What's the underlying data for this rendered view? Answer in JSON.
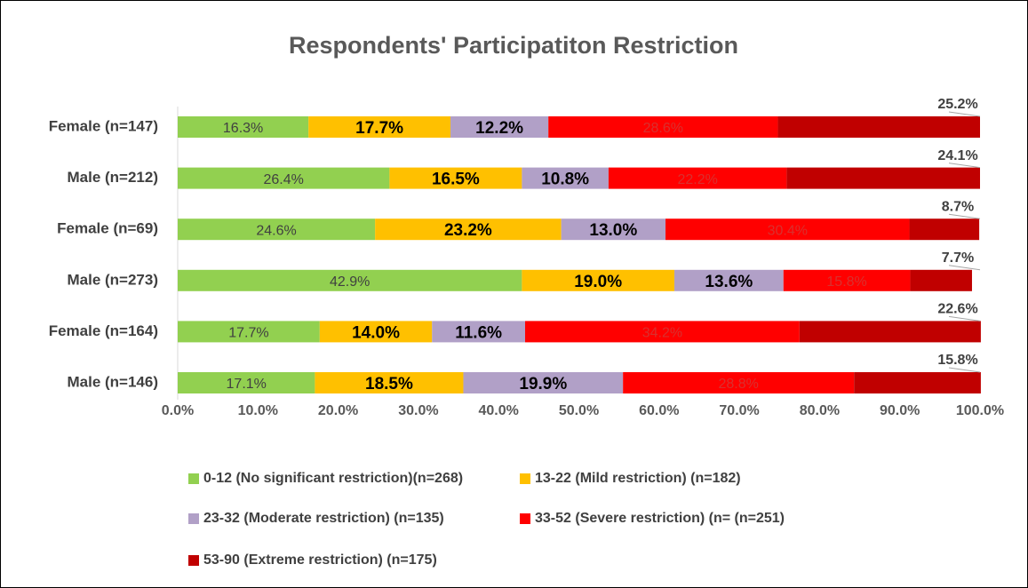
{
  "chart_data": {
    "type": "stacked_bar_horizontal_100",
    "title": "Respondents' Participatiton Restriction",
    "categories": [
      "Female (n=147)",
      "Male (n=212)",
      "Female (n=69)",
      "Male (n=273)",
      "Female (n=164)",
      "Male (n=146)"
    ],
    "series": [
      {
        "name": "0-12 (No significant restriction)(n=268)",
        "color": "#92d050",
        "values": [
          16.3,
          26.4,
          24.6,
          42.9,
          17.7,
          17.1
        ],
        "value_labels": [
          "16.3%",
          "26.4%",
          "24.6%",
          "42.9%",
          "17.7%",
          "17.1%"
        ]
      },
      {
        "name": "13-22 (Mild restriction) (n=182)",
        "color": "#ffc000",
        "values": [
          17.7,
          16.5,
          23.2,
          19.0,
          14.0,
          18.5
        ],
        "value_labels": [
          "17.7%",
          "16.5%",
          "23.2%",
          "19.0%",
          "14.0%",
          "18.5%"
        ]
      },
      {
        "name": "23-32 (Moderate restriction) (n=135)",
        "color": "#b1a0c7",
        "values": [
          12.2,
          10.8,
          13.0,
          13.6,
          11.6,
          19.9
        ],
        "value_labels": [
          "12.2%",
          "10.8%",
          "13.0%",
          "13.6%",
          "11.6%",
          "19.9%"
        ]
      },
      {
        "name": "33-52 (Severe restriction) (n= (n=251)",
        "color": "#ff0000",
        "values": [
          28.6,
          22.2,
          30.4,
          15.8,
          34.2,
          28.8
        ],
        "value_labels": [
          "28.6%",
          "22.2%",
          "30.4%",
          "15.8%",
          "34.2%",
          "28.8%"
        ]
      },
      {
        "name": "53-90 (Extreme restriction) (n=175)",
        "color": "#c00000",
        "values": [
          25.2,
          24.1,
          8.7,
          7.7,
          22.6,
          15.8
        ],
        "value_labels": [
          "25.2%",
          "24.1%",
          "8.7%",
          "7.7%",
          "22.6%",
          "15.8%"
        ]
      }
    ],
    "xlim": [
      0,
      100
    ],
    "xticks": [
      {
        "value": 0,
        "label": "0.0%"
      },
      {
        "value": 10,
        "label": "10.0%"
      },
      {
        "value": 20,
        "label": "20.0%"
      },
      {
        "value": 30,
        "label": "30.0%"
      },
      {
        "value": 40,
        "label": "40.0%"
      },
      {
        "value": 50,
        "label": "50.0%"
      },
      {
        "value": 60,
        "label": "60.0%"
      },
      {
        "value": 70,
        "label": "70.0%"
      },
      {
        "value": 80,
        "label": "80.0%"
      },
      {
        "value": 90,
        "label": "90.0%"
      },
      {
        "value": 100,
        "label": "100.0%"
      }
    ],
    "grid": false,
    "legend": "bottom"
  }
}
